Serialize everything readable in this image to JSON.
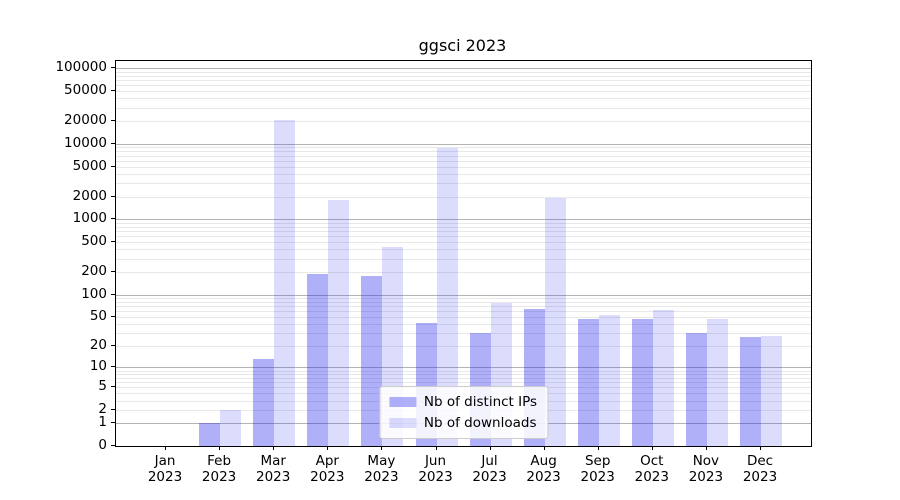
{
  "chart_data": {
    "type": "bar",
    "title": "ggsci 2023",
    "categories": [
      "Jan",
      "Feb",
      "Mar",
      "Apr",
      "May",
      "Jun",
      "Jul",
      "Aug",
      "Sep",
      "Oct",
      "Nov",
      "Dec"
    ],
    "tick_year": "2023",
    "series": [
      {
        "name": "Nb of distinct IPs",
        "values": [
          0,
          1,
          13,
          190,
          180,
          42,
          30,
          64,
          47,
          47,
          30,
          27
        ]
      },
      {
        "name": "Nb of downloads",
        "values": [
          0,
          2,
          21000,
          1800,
          430,
          8700,
          77,
          1900,
          53,
          62,
          47,
          28
        ]
      }
    ],
    "yscale": "log1p",
    "ylim": [
      0,
      125000
    ],
    "yticks": [
      0,
      1,
      2,
      5,
      10,
      20,
      50,
      100,
      200,
      500,
      1000,
      2000,
      5000,
      10000,
      20000,
      50000,
      100000
    ],
    "grid": "horizontal; light minor log lines, gray decade lines",
    "legend_position": "lower center"
  },
  "colors": {
    "bar_base_blue": "#2828f0",
    "ips_alpha": 0.37,
    "downloads_alpha": 0.16,
    "ips_on_white": "#a7a7f8",
    "downloads_on_white": "#d9d9fa",
    "grid_major": "#b4b4b4",
    "grid_minor": "#e8e8e8",
    "axis": "#000000"
  }
}
